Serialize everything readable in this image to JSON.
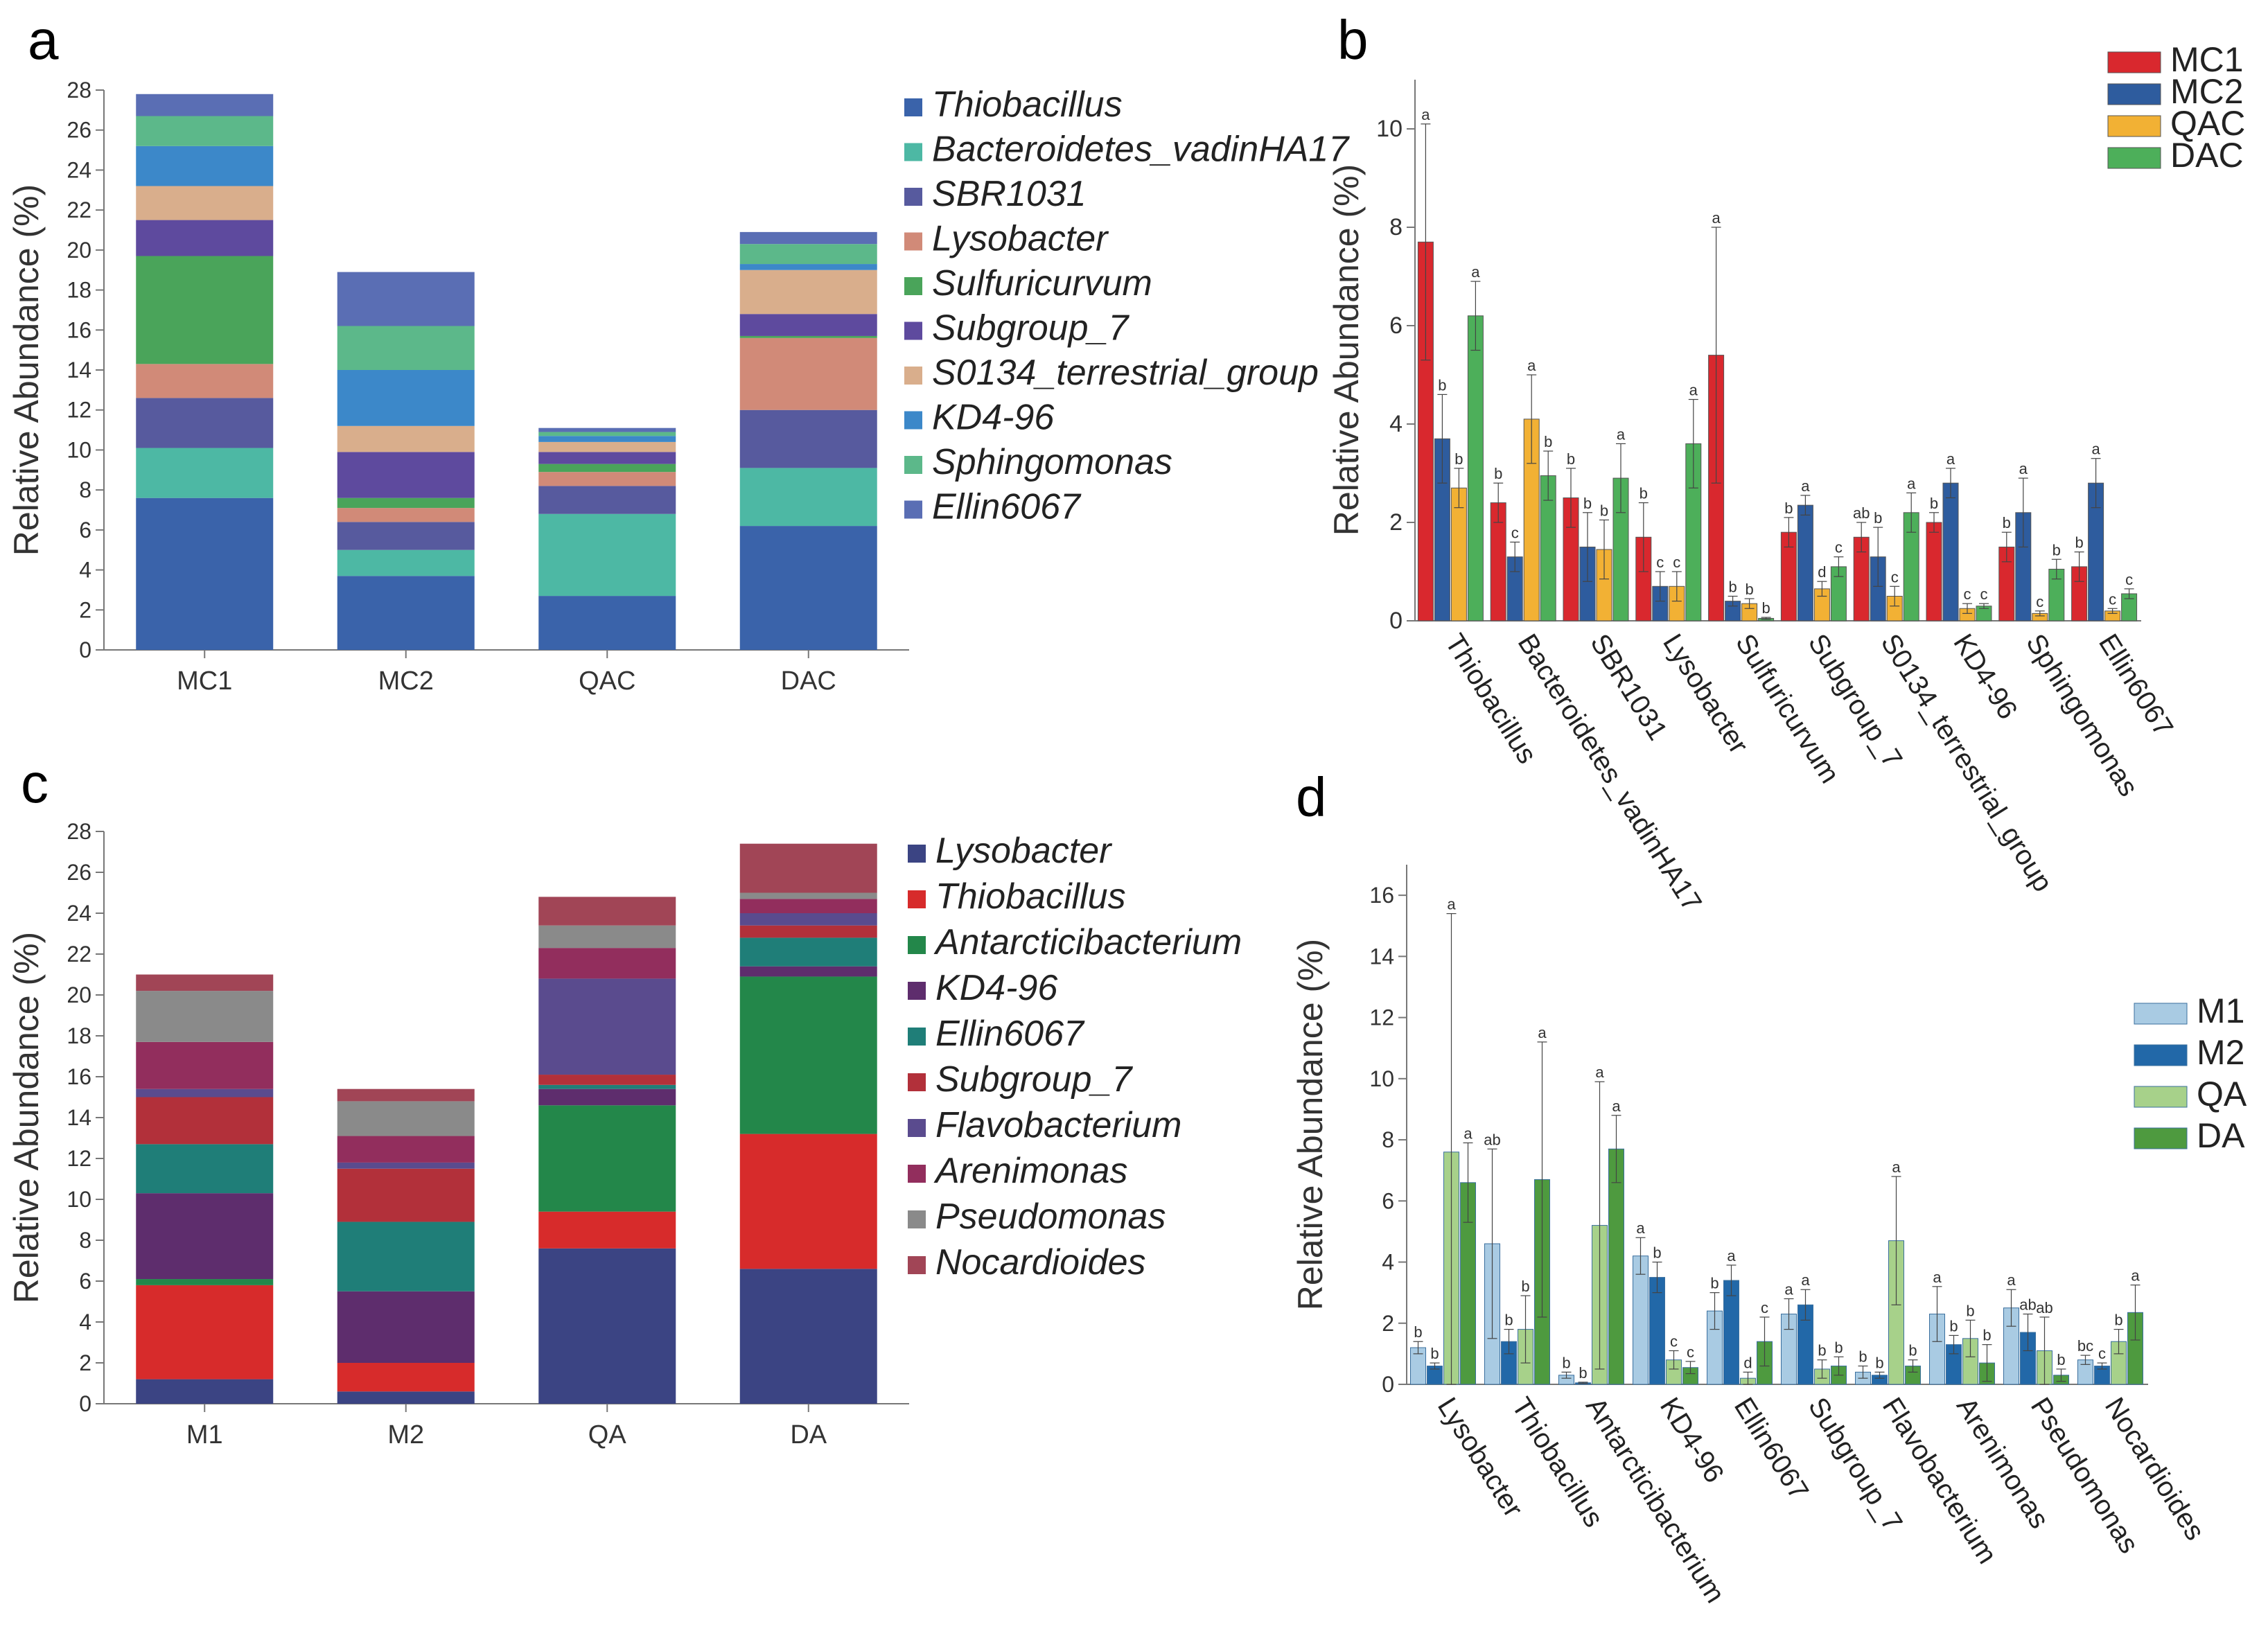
{
  "chart_data": [
    {
      "panel": "a",
      "type": "bar",
      "stacked": true,
      "ylabel": "Relative Abundance (%)",
      "ylim": [
        0,
        28
      ],
      "yticks": [
        0,
        2,
        4,
        6,
        8,
        10,
        12,
        14,
        16,
        18,
        20,
        22,
        24,
        26,
        28
      ],
      "categories": [
        "MC1",
        "MC2",
        "QAC",
        "DAC"
      ],
      "legend_position": "right",
      "series": [
        {
          "name": "Thiobacillus",
          "color": "#3A63AA",
          "values": [
            7.6,
            3.7,
            2.7,
            6.2
          ]
        },
        {
          "name": "Bacteroidetes_vadinHA17",
          "color": "#4DB8A4",
          "values": [
            2.5,
            1.3,
            4.1,
            2.9
          ]
        },
        {
          "name": "SBR1031",
          "color": "#575A9E",
          "values": [
            2.5,
            1.4,
            1.4,
            2.9
          ]
        },
        {
          "name": "Lysobacter",
          "color": "#D18A78",
          "values": [
            1.7,
            0.7,
            0.7,
            3.6
          ]
        },
        {
          "name": "Sulfuricurvum",
          "color": "#4AA45A",
          "values": [
            5.4,
            0.5,
            0.4,
            0.1
          ]
        },
        {
          "name": "Subgroup_7",
          "color": "#5E4A9E",
          "values": [
            1.8,
            2.3,
            0.6,
            1.1
          ]
        },
        {
          "name": "S0134_terrestrial_group",
          "color": "#D9AE8C",
          "values": [
            1.7,
            1.3,
            0.5,
            2.2
          ]
        },
        {
          "name": "KD4-96",
          "color": "#3C88C9",
          "values": [
            2.0,
            2.8,
            0.3,
            0.3
          ]
        },
        {
          "name": "Sphingomonas",
          "color": "#5CB88A",
          "values": [
            1.5,
            2.2,
            0.2,
            1.0
          ]
        },
        {
          "name": "Ellin6067",
          "color": "#5A6EB4",
          "values": [
            1.1,
            2.7,
            0.2,
            0.6
          ]
        }
      ]
    },
    {
      "panel": "b",
      "type": "bar",
      "ylabel": "Relative Abundance (%)",
      "ylim": [
        0,
        11
      ],
      "yticks": [
        0,
        2,
        4,
        6,
        8,
        10
      ],
      "categories": [
        "Thiobacillus",
        "Bacteroidetes_vadinHA17",
        "SBR1031",
        "Lysobacter",
        "Sulfuricurvum",
        "Subgroup_7",
        "S0134_terrestrial_group",
        "KD4-96",
        "Sphingomonas",
        "Ellin6067"
      ],
      "legend_position": "top-right",
      "series": [
        {
          "name": "MC1",
          "color": "#D9282E",
          "values": [
            7.7,
            2.4,
            2.5,
            1.7,
            5.4,
            1.8,
            1.7,
            2.0,
            1.5,
            1.1
          ],
          "err": [
            2.4,
            0.4,
            0.6,
            0.7,
            2.6,
            0.3,
            0.3,
            0.2,
            0.3,
            0.3
          ],
          "sig": [
            "a",
            "b",
            "b",
            "b",
            "a",
            "b",
            "ab",
            "b",
            "b",
            "b"
          ]
        },
        {
          "name": "MC2",
          "color": "#2E5C9E",
          "values": [
            3.7,
            1.3,
            1.5,
            0.7,
            0.4,
            2.35,
            1.3,
            2.8,
            2.2,
            2.8
          ],
          "err": [
            0.9,
            0.3,
            0.7,
            0.3,
            0.1,
            0.2,
            0.6,
            0.3,
            0.7,
            0.5
          ],
          "sig": [
            "b",
            "c",
            "b",
            "c",
            "b",
            "a",
            "b",
            "a",
            "a",
            "a"
          ]
        },
        {
          "name": "QAC",
          "color": "#F2B134",
          "values": [
            2.7,
            4.1,
            1.45,
            0.7,
            0.35,
            0.65,
            0.5,
            0.25,
            0.15,
            0.2
          ],
          "err": [
            0.4,
            0.9,
            0.6,
            0.3,
            0.1,
            0.15,
            0.2,
            0.1,
            0.05,
            0.05
          ],
          "sig": [
            "b",
            "a",
            "b",
            "c",
            "b",
            "d",
            "c",
            "c",
            "c",
            "c"
          ]
        },
        {
          "name": "DAC",
          "color": "#4DAF5A",
          "values": [
            6.2,
            2.95,
            2.9,
            3.6,
            0.05,
            1.1,
            2.2,
            0.3,
            1.05,
            0.55
          ],
          "err": [
            0.7,
            0.5,
            0.7,
            0.9,
            0.02,
            0.2,
            0.4,
            0.05,
            0.2,
            0.1
          ],
          "sig": [
            "a",
            "b",
            "a",
            "a",
            "b",
            "c",
            "a",
            "c",
            "b",
            "c"
          ]
        }
      ]
    },
    {
      "panel": "c",
      "type": "bar",
      "stacked": true,
      "ylabel": "Relative Abundance (%)",
      "ylim": [
        0,
        28
      ],
      "yticks": [
        0,
        2,
        4,
        6,
        8,
        10,
        12,
        14,
        16,
        18,
        20,
        22,
        24,
        26,
        28
      ],
      "categories": [
        "M1",
        "M2",
        "QA",
        "DA"
      ],
      "legend_position": "right",
      "series": [
        {
          "name": "Lysobacter",
          "color": "#3B4483",
          "values": [
            1.2,
            0.6,
            7.6,
            6.6
          ]
        },
        {
          "name": "Thiobacillus",
          "color": "#D72B2B",
          "values": [
            4.6,
            1.4,
            1.8,
            6.6
          ]
        },
        {
          "name": "Antarcticibacterium",
          "color": "#23874A",
          "values": [
            0.3,
            0.0,
            5.2,
            7.7
          ]
        },
        {
          "name": "KD4-96",
          "color": "#5E2D6D",
          "values": [
            4.2,
            3.5,
            0.8,
            0.5
          ]
        },
        {
          "name": "Ellin6067",
          "color": "#1F7E78",
          "values": [
            2.4,
            3.4,
            0.2,
            1.4
          ]
        },
        {
          "name": "Subgroup_7",
          "color": "#B2303A",
          "values": [
            2.3,
            2.6,
            0.5,
            0.6
          ]
        },
        {
          "name": "Flavobacterium",
          "color": "#5A4B8E",
          "values": [
            0.4,
            0.3,
            4.7,
            0.6
          ]
        },
        {
          "name": "Arenimonas",
          "color": "#922E5D",
          "values": [
            2.3,
            1.3,
            1.5,
            0.7
          ]
        },
        {
          "name": "Pseudomonas",
          "color": "#8A8A8A",
          "values": [
            2.5,
            1.7,
            1.1,
            0.3
          ]
        },
        {
          "name": "Nocardioides",
          "color": "#A14556",
          "values": [
            0.8,
            0.6,
            1.4,
            2.4
          ]
        }
      ]
    },
    {
      "panel": "d",
      "type": "bar",
      "ylabel": "Relative Abundance (%)",
      "ylim": [
        0,
        17
      ],
      "yticks": [
        0,
        2,
        4,
        6,
        8,
        10,
        12,
        14,
        16
      ],
      "categories": [
        "Lysobacter",
        "Thiobacillus",
        "Antarcticibacterium",
        "KD4-96",
        "Ellin6067",
        "Subgroup_7",
        "Flavobacterium",
        "Arenimonas",
        "Pseudomonas",
        "Nocardioides"
      ],
      "legend_position": "right",
      "series": [
        {
          "name": "M1",
          "color": "#A9CBE3",
          "values": [
            1.2,
            4.6,
            0.3,
            4.2,
            2.4,
            2.3,
            0.4,
            2.3,
            2.5,
            0.8
          ],
          "err": [
            0.2,
            3.1,
            0.1,
            0.6,
            0.6,
            0.5,
            0.2,
            0.9,
            0.6,
            0.15
          ],
          "sig": [
            "b",
            "ab",
            "b",
            "a",
            "b",
            "a",
            "b",
            "a",
            "a",
            "bc"
          ]
        },
        {
          "name": "M2",
          "color": "#2268A8",
          "values": [
            0.6,
            1.4,
            0.05,
            3.5,
            3.4,
            2.6,
            0.3,
            1.3,
            1.7,
            0.6
          ],
          "err": [
            0.1,
            0.4,
            0.02,
            0.5,
            0.5,
            0.5,
            0.1,
            0.3,
            0.6,
            0.1
          ],
          "sig": [
            "b",
            "b",
            "b",
            "b",
            "a",
            "a",
            "b",
            "b",
            "ab",
            "c"
          ]
        },
        {
          "name": "QA",
          "color": "#A7D18A",
          "values": [
            7.6,
            1.8,
            5.2,
            0.8,
            0.2,
            0.5,
            4.7,
            1.5,
            1.1,
            1.4
          ],
          "err": [
            7.8,
            1.1,
            4.7,
            0.3,
            0.2,
            0.3,
            2.1,
            0.6,
            1.1,
            0.4
          ],
          "sig": [
            "a",
            "b",
            "a",
            "c",
            "d",
            "b",
            "a",
            "b",
            "ab",
            "b"
          ]
        },
        {
          "name": "DA",
          "color": "#4E9A3F",
          "values": [
            6.6,
            6.7,
            7.7,
            0.55,
            1.4,
            0.6,
            0.6,
            0.7,
            0.3,
            2.35
          ],
          "err": [
            1.3,
            4.5,
            1.1,
            0.2,
            0.8,
            0.3,
            0.2,
            0.6,
            0.2,
            0.9
          ],
          "sig": [
            "a",
            "a",
            "a",
            "c",
            "c",
            "b",
            "b",
            "b",
            "b",
            "a"
          ]
        }
      ]
    }
  ]
}
